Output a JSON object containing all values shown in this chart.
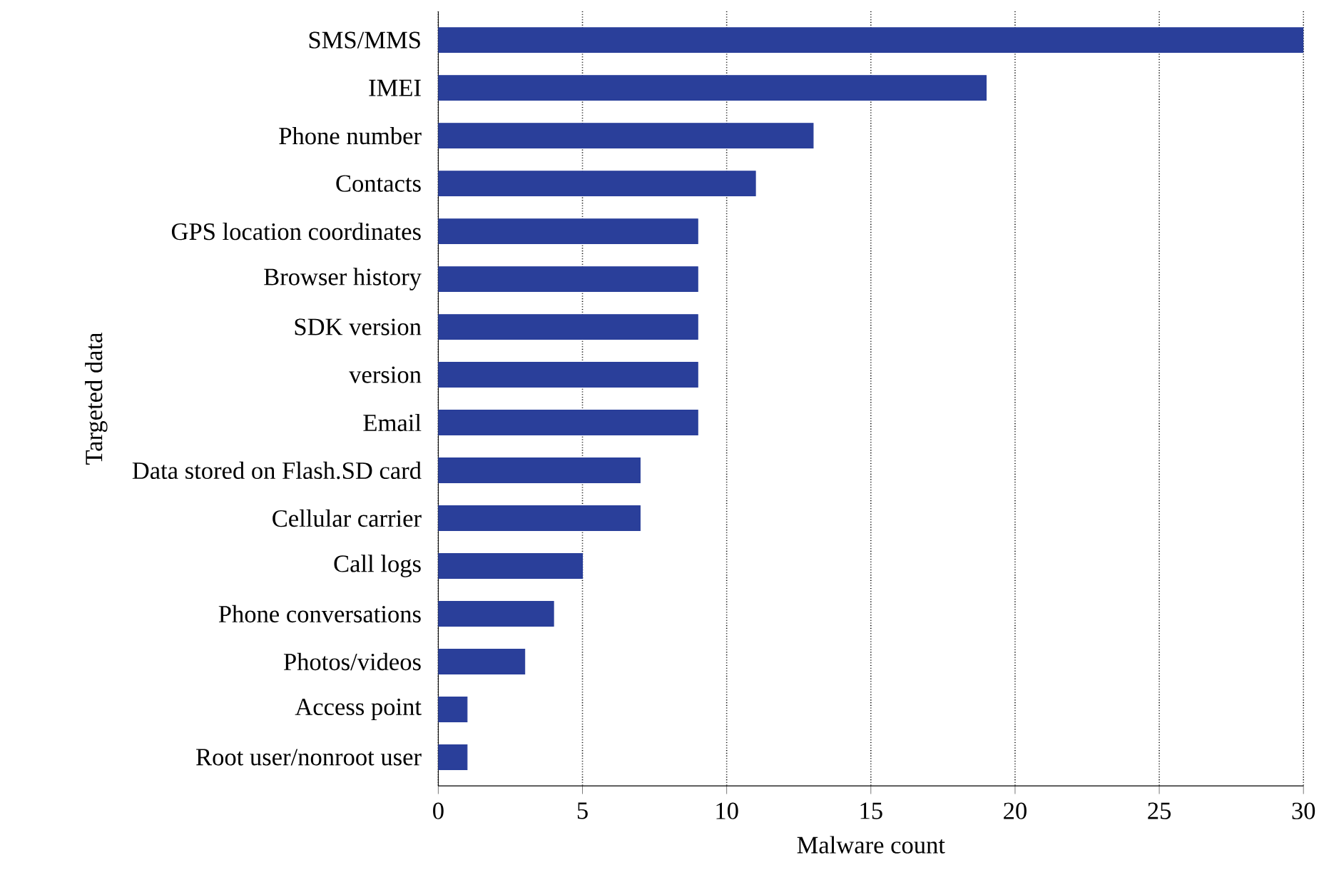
{
  "chart_data": {
    "type": "bar",
    "orientation": "horizontal",
    "xlabel": "Malware count",
    "ylabel": "Targeted data",
    "categories": [
      "SMS/MMS",
      "IMEI",
      "Phone number",
      "Contacts",
      "GPS location coordinates",
      "Browser history",
      "SDK version",
      "version",
      "Email",
      "Data stored on Flash.SD card",
      "Cellular carrier",
      "Call logs",
      "Phone conversations",
      "Photos/videos",
      "Access point",
      "Root user/nonroot user"
    ],
    "values": [
      30,
      19,
      13,
      11,
      9,
      9,
      9,
      9,
      9,
      7,
      7,
      5,
      4,
      3,
      1,
      1
    ],
    "color": "#2a3f9a",
    "xlim": [
      0,
      30
    ],
    "xticks": [
      0,
      5,
      10,
      15,
      20,
      25,
      30
    ],
    "grid": "x"
  }
}
